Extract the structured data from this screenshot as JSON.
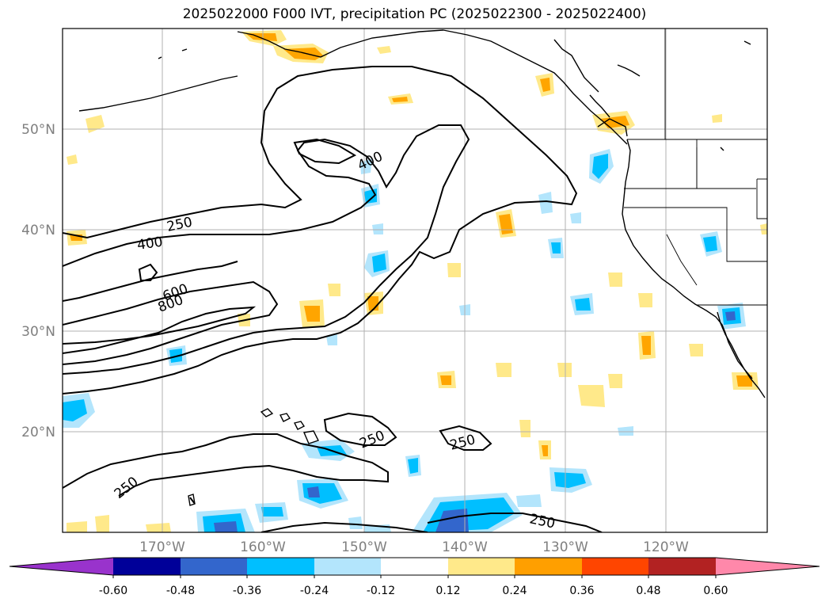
{
  "title": "2025022000 F000 IVT, precipitation PC (2025022300 - 2025022400)",
  "map": {
    "lat_labels": [
      "50°N",
      "40°N",
      "30°N",
      "20°N"
    ],
    "lon_labels": [
      "170°W",
      "160°W",
      "150°W",
      "140°W",
      "130°W",
      "120°W"
    ],
    "contour_labels": [
      "400",
      "250",
      "400",
      "600",
      "800",
      "250",
      "250",
      "250",
      "250"
    ]
  },
  "colorbar": {
    "ticks": [
      "-0.60",
      "-0.48",
      "-0.36",
      "-0.24",
      "-0.12",
      "0.12",
      "0.24",
      "0.36",
      "0.48",
      "0.60"
    ],
    "colors": [
      "#9933cc",
      "#000099",
      "#3366cc",
      "#00bfff",
      "#b3e5fc",
      "#ffffff",
      "#ffe98a",
      "#ff9f00",
      "#ff4500",
      "#b22222",
      "#ff88aa"
    ]
  },
  "colors": {
    "positive_light": "#ffe98a",
    "positive_mid": "#ffa500",
    "negative_light": "#b3e5fc",
    "negative_mid": "#00bfff",
    "negative_dark": "#3366cc",
    "grid": "#b0b0b0"
  }
}
